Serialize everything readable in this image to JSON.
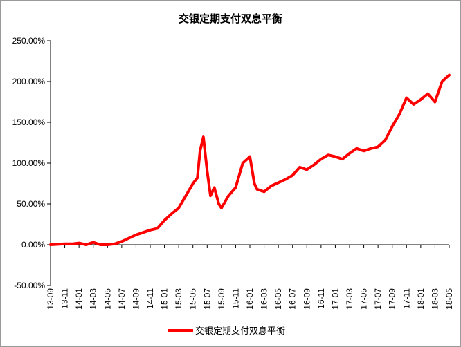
{
  "chart_data": {
    "type": "line",
    "title": "交银定期支付双息平衡",
    "xlabel": "",
    "ylabel": "",
    "ylim": [
      -50,
      250
    ],
    "y_ticks": [
      "250.00%",
      "200.00%",
      "150.00%",
      "100.00%",
      "50.00%",
      "0.00%",
      "-50.00%"
    ],
    "x_ticks": [
      "13-09",
      "13-11",
      "14-01",
      "14-03",
      "14-05",
      "14-07",
      "14-09",
      "14-11",
      "15-01",
      "15-03",
      "15-05",
      "15-07",
      "15-09",
      "15-11",
      "16-01",
      "16-03",
      "16-05",
      "16-07",
      "16-09",
      "16-11",
      "17-01",
      "17-03",
      "17-05",
      "17-07",
      "17-09",
      "17-11",
      "18-01",
      "18-03",
      "18-05"
    ],
    "grid": false,
    "legend": "bottom",
    "color": "#ff0000",
    "series": [
      {
        "name": "交银定期支付双息平衡",
        "x": [
          "2013-09",
          "2013-10",
          "2013-11",
          "2013-12",
          "2014-01",
          "2014-02",
          "2014-03",
          "2014-04",
          "2014-05",
          "2014-06",
          "2014-07",
          "2014-08",
          "2014-09",
          "2014-10",
          "2014-11",
          "2014-12",
          "2015-01",
          "2015-02",
          "2015-03",
          "2015-04",
          "2015-05",
          "2015-05-20",
          "2015-06",
          "2015-06-15",
          "2015-07",
          "2015-07-15",
          "2015-08",
          "2015-08-20",
          "2015-09",
          "2015-10",
          "2015-11",
          "2015-12",
          "2015-12-20",
          "2016-01",
          "2016-01-20",
          "2016-02",
          "2016-03",
          "2016-04",
          "2016-05",
          "2016-06",
          "2016-07",
          "2016-08",
          "2016-09",
          "2016-10",
          "2016-11",
          "2016-12",
          "2017-01",
          "2017-02",
          "2017-03",
          "2017-04",
          "2017-05",
          "2017-06",
          "2017-07",
          "2017-08",
          "2017-09",
          "2017-10",
          "2017-11",
          "2017-12",
          "2018-01",
          "2018-02",
          "2018-03",
          "2018-04",
          "2018-05"
        ],
        "values": [
          0,
          0.5,
          1,
          1,
          2,
          0,
          3,
          0,
          0,
          1,
          4,
          8,
          12,
          15,
          18,
          20,
          30,
          38,
          45,
          60,
          75,
          82,
          115,
          132,
          90,
          60,
          70,
          50,
          45,
          60,
          70,
          100,
          105,
          108,
          75,
          68,
          65,
          72,
          76,
          80,
          85,
          95,
          92,
          98,
          105,
          110,
          108,
          105,
          112,
          118,
          115,
          118,
          120,
          128,
          145,
          160,
          180,
          172,
          178,
          185,
          175,
          200,
          208
        ]
      }
    ]
  }
}
